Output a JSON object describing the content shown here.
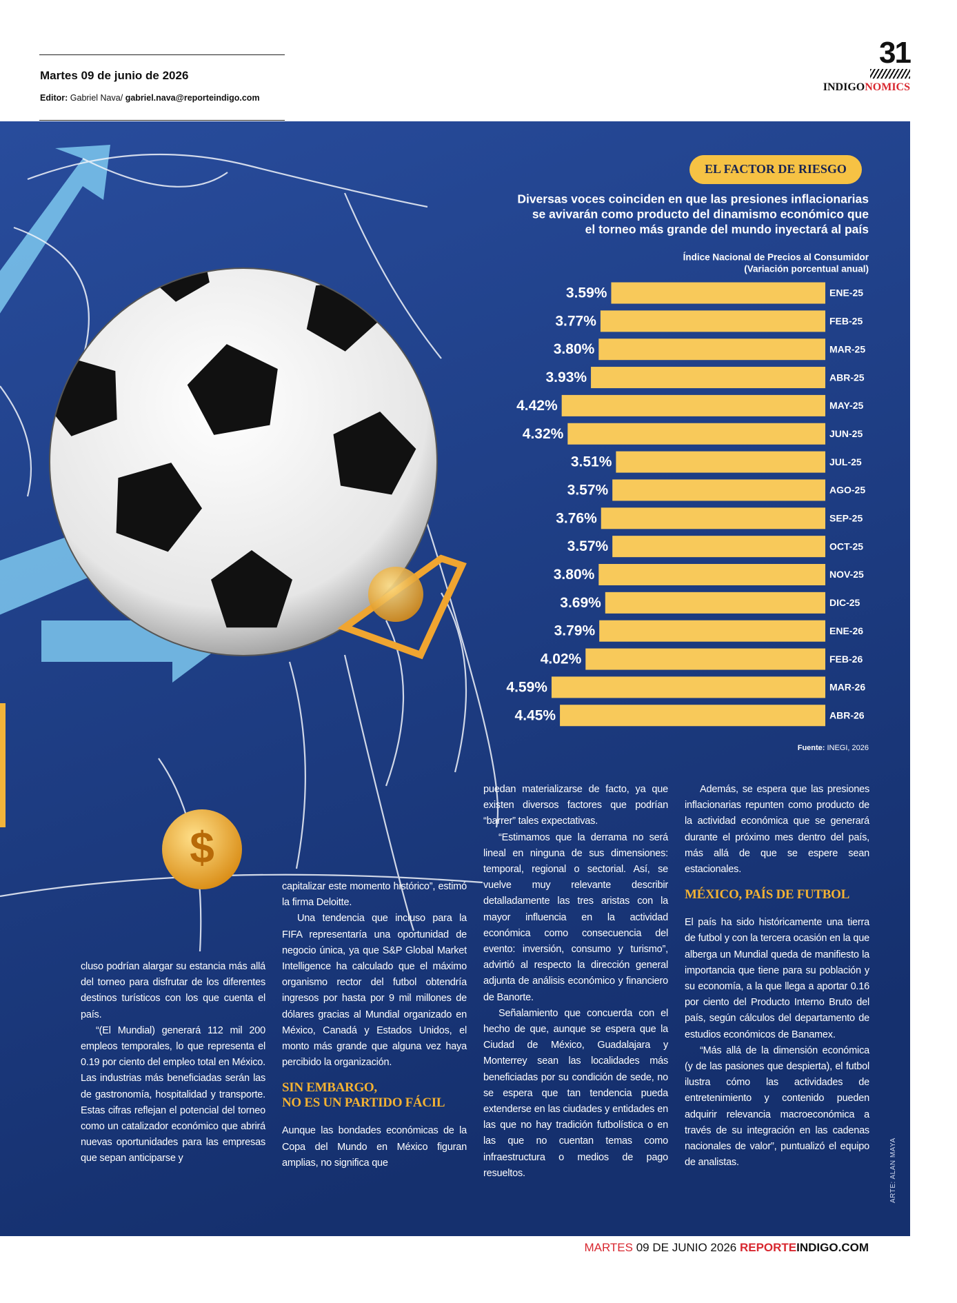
{
  "header": {
    "date": "Martes  09 de junio de 2026",
    "editor_label": "Editor:",
    "editor_name": "Gabriel Nava/",
    "editor_email": "gabriel.nava@reporteindigo.com",
    "page_number": "31",
    "section_a": "INDIGO",
    "section_b": "NOMICS"
  },
  "chart_data": {
    "type": "bar",
    "orientation": "horizontal",
    "title": "EL FACTOR DE RIESGO",
    "subtitle": [
      "Diversas voces coinciden en que las presiones inflacionarias",
      "se avivarán como producto del dinamismo económico que",
      "el torneo más grande del mundo inyectará al país"
    ],
    "axis_label": [
      "Índice Nacional de Precios al Consumidor",
      "(Variación porcentual anual)"
    ],
    "categories": [
      "ENE-25",
      "FEB-25",
      "MAR-25",
      "ABR-25",
      "MAY-25",
      "JUN-25",
      "JUL-25",
      "AGO-25",
      "SEP-25",
      "OCT-25",
      "NOV-25",
      "DIC-25",
      "ENE-26",
      "FEB-26",
      "MAR-26",
      "ABR-26"
    ],
    "values": [
      3.59,
      3.77,
      3.8,
      3.93,
      4.42,
      4.32,
      3.51,
      3.57,
      3.76,
      3.57,
      3.8,
      3.69,
      3.79,
      4.02,
      4.59,
      4.45
    ],
    "value_labels": [
      "3.59%",
      "3.77%",
      "3.80%",
      "3.93%",
      "4.42%",
      "4.32%",
      "3.51%",
      "3.57%",
      "3.76%",
      "3.57%",
      "3.80%",
      "3.69%",
      "3.79%",
      "4.02%",
      "4.59%",
      "4.45%"
    ],
    "color": "#f8c95a",
    "xlim": [
      0,
      5
    ],
    "source_label": "Fuente:",
    "source": "INEGI, 2026"
  },
  "article": {
    "paragraphs": [
      "cluso podrían alargar su estancia más allá del torneo para disfrutar de los diferentes destinos turísticos con los que cuenta el país.",
      "“(El Mundial) generará 112 mil 200 empleos temporales, lo que representa el 0.19 por ciento del empleo total en México. Las industrias más beneficiadas serán las de gastronomía, hospitalidad y transporte. Estas cifras reflejan el potencial del torneo como un catalizador económico que abrirá nuevas oportunidades para las empresas que sepan anticiparse y",
      "capitalizar este momento histórico”, estimó la firma Deloitte.",
      "Una tendencia que incluso para la FIFA representaría una oportunidad de negocio única, ya que S&P Global Market Intelligence ha calculado que el máximo organismo rector del futbol obtendría ingresos por hasta por 9 mil millones de dólares gracias al Mundial organizado en México, Canadá y Estados Unidos, el monto más grande que alguna vez haya percibido la organización.",
      "Aunque las bondades económicas de la Copa del Mundo en México figuran amplias, no significa que",
      "puedan materializarse de facto, ya que existen diversos factores que podrían “barrer” tales expectativas.",
      "“Estimamos que la derrama no será lineal en ninguna de sus dimensiones: temporal, regional o sectorial. Así, se vuelve muy relevante describir detalladamente las tres aristas con la mayor influencia en la actividad económica como consecuencia del evento: inversión, consumo y turismo”, advirtió al respecto la dirección general adjunta de análisis económico y financiero de Banorte.",
      "Señalamiento que concuerda con el hecho de que, aunque se espera que la Ciudad de México, Guadalajara y Monterrey sean las localidades más beneficiadas por su condición de sede, no se espera que tan tendencia pueda extenderse en las ciudades y entidades en las que no hay tradición futbolística o en las que no cuentan temas como infraestructura o medios de pago resueltos.",
      "Además, se espera que las presiones inflacionarias repunten como producto de la actividad económica que se generará durante el próximo mes dentro del país, más allá de que se espere sean estacionales.",
      "El país ha sido históricamente una tierra de futbol y con la tercera ocasión en la que alberga un Mundial queda de manifiesto la importancia que tiene para su población y su economía, a la que llega a aportar 0.16 por ciento del Producto Interno Bruto del país, según cálculos del departamento de estudios económicos de Banamex.",
      "“Más allá de la dimensión económica (y de las pasiones que despierta), el futbol ilustra cómo las actividades de entretenimiento y contenido pueden adquirir relevancia macroeconómica a través de su integración en las cadenas nacionales de valor”, puntualizó el equipo de analistas."
    ],
    "headings": [
      [
        "SIN EMBARGO,",
        "NO ES UN PARTIDO FÁCIL"
      ],
      [
        "MÉXICO, PAÍS DE FUTBOL"
      ]
    ],
    "credit": "ARTE: ALAN MAYA"
  },
  "footer": {
    "day": "MARTES",
    "date": "09 DE JUNIO 2026",
    "site_a": "REPORTE",
    "site_b": "INDIGO.COM"
  }
}
